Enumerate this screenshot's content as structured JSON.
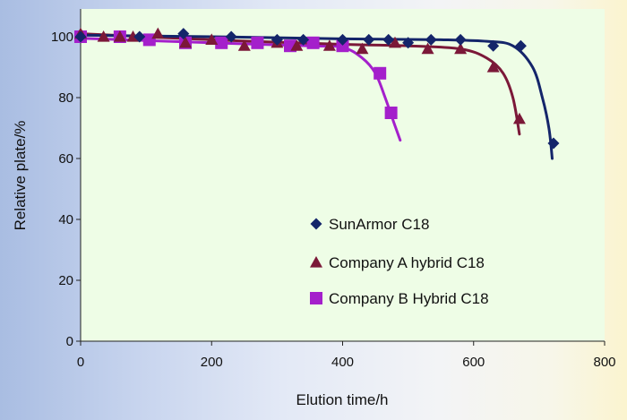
{
  "chart_data": {
    "type": "scatter",
    "title": "",
    "xlabel": "Elution time/h",
    "ylabel": "Relative plate/%",
    "xlim": [
      0,
      800
    ],
    "ylim": [
      0,
      110
    ],
    "xticks": [
      "0",
      "200",
      "400",
      "600",
      "800"
    ],
    "yticks": [
      "0",
      "20",
      "40",
      "60",
      "80",
      "100"
    ],
    "legend_position": "center-right",
    "grid": false,
    "plot_background": "#eefde6",
    "series": [
      {
        "name": "SunArmor C18",
        "marker": "diamond",
        "color": "#14256a",
        "points": [
          [
            0,
            100
          ],
          [
            90,
            100
          ],
          [
            157,
            101
          ],
          [
            230,
            100
          ],
          [
            300,
            99
          ],
          [
            340,
            99
          ],
          [
            400,
            99
          ],
          [
            440,
            99
          ],
          [
            470,
            99
          ],
          [
            500,
            98
          ],
          [
            535,
            99
          ],
          [
            580,
            99
          ],
          [
            630,
            97
          ],
          [
            672,
            97
          ],
          [
            722,
            65
          ]
        ],
        "curve": [
          [
            0,
            100.5
          ],
          [
            200,
            100
          ],
          [
            400,
            99.3
          ],
          [
            550,
            99
          ],
          [
            620,
            98.5
          ],
          [
            660,
            97
          ],
          [
            690,
            90
          ],
          [
            705,
            80
          ],
          [
            715,
            70
          ],
          [
            720,
            60
          ]
        ]
      },
      {
        "name": "Company A hybrid C18",
        "marker": "triangle",
        "color": "#7b1838",
        "points": [
          [
            0,
            101
          ],
          [
            35,
            100
          ],
          [
            60,
            100
          ],
          [
            80,
            100
          ],
          [
            118,
            101
          ],
          [
            160,
            98
          ],
          [
            200,
            99
          ],
          [
            250,
            97
          ],
          [
            300,
            98
          ],
          [
            330,
            97
          ],
          [
            380,
            97
          ],
          [
            430,
            96
          ],
          [
            480,
            98
          ],
          [
            530,
            96
          ],
          [
            580,
            96
          ],
          [
            630,
            90
          ],
          [
            670,
            73
          ]
        ],
        "curve": [
          [
            0,
            101
          ],
          [
            200,
            99
          ],
          [
            400,
            97.5
          ],
          [
            500,
            97
          ],
          [
            580,
            96
          ],
          [
            620,
            93
          ],
          [
            645,
            88
          ],
          [
            660,
            80
          ],
          [
            670,
            68
          ]
        ]
      },
      {
        "name": "Company B Hybrid C18",
        "marker": "square",
        "color": "#a41fcb",
        "points": [
          [
            0,
            100
          ],
          [
            60,
            100
          ],
          [
            105,
            99
          ],
          [
            160,
            98
          ],
          [
            215,
            98
          ],
          [
            270,
            98
          ],
          [
            320,
            97
          ],
          [
            355,
            98
          ],
          [
            400,
            97
          ],
          [
            457,
            88
          ],
          [
            474,
            75
          ]
        ],
        "curve": [
          [
            0,
            99.5
          ],
          [
            200,
            98
          ],
          [
            350,
            97
          ],
          [
            400,
            96.5
          ],
          [
            430,
            93
          ],
          [
            450,
            88
          ],
          [
            465,
            80
          ],
          [
            478,
            72
          ],
          [
            488,
            66
          ]
        ]
      }
    ]
  }
}
